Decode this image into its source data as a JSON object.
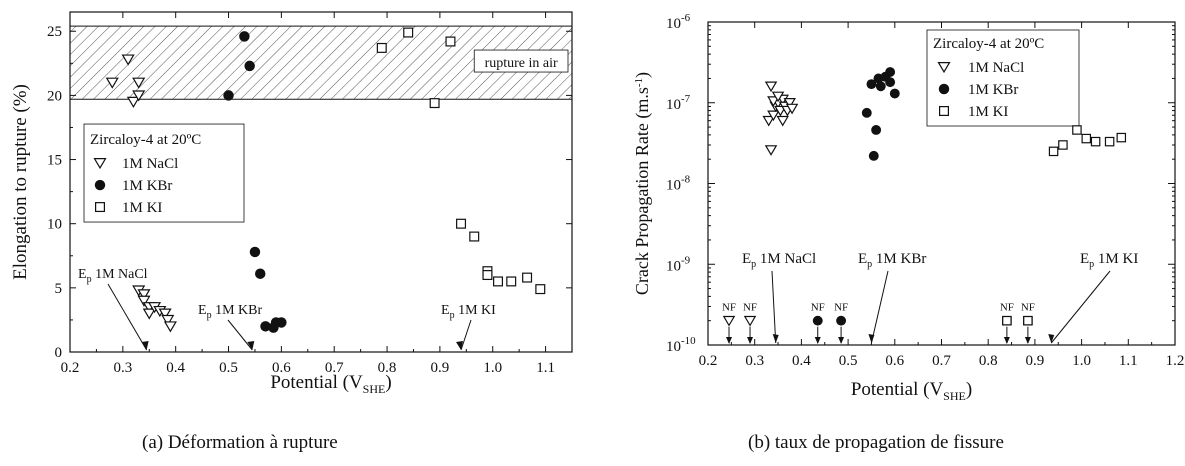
{
  "chart_data": [
    {
      "type": "scatter",
      "caption": "(a)  Déformation à rupture",
      "xlabel": "Potential (V",
      "xlabel_sub": "SHE",
      "xlabel_close": ")",
      "ylabel": "Elongation to rupture (%)",
      "xlim": [
        0.2,
        1.15
      ],
      "ylim": [
        0,
        26.5
      ],
      "xticks": [
        "0.2",
        "0.3",
        "0.4",
        "0.5",
        "0.6",
        "0.7",
        "0.8",
        "0.9",
        "1.0",
        "1.1"
      ],
      "yticks": [
        "0",
        "5",
        "10",
        "15",
        "20",
        "25"
      ],
      "legend": {
        "title": "Zircaloy-4 at 20ºC",
        "position": "center-left"
      },
      "band": {
        "y_from": 19.7,
        "y_to": 25.4,
        "label": "rupture in air"
      },
      "series": [
        {
          "name": "1M NaCl",
          "marker": "triangle-down-open",
          "points": [
            [
              0.28,
              21
            ],
            [
              0.31,
              22.8
            ],
            [
              0.32,
              19.5
            ],
            [
              0.33,
              20
            ],
            [
              0.33,
              21
            ],
            [
              0.33,
              4.8
            ],
            [
              0.34,
              4.5
            ],
            [
              0.34,
              4
            ],
            [
              0.35,
              3.5
            ],
            [
              0.35,
              3
            ],
            [
              0.36,
              3.5
            ],
            [
              0.37,
              3.2
            ],
            [
              0.38,
              3
            ],
            [
              0.385,
              2.5
            ],
            [
              0.39,
              2
            ]
          ]
        },
        {
          "name": "1M KBr",
          "marker": "circle-filled",
          "points": [
            [
              0.5,
              20
            ],
            [
              0.53,
              24.6
            ],
            [
              0.54,
              22.3
            ],
            [
              0.55,
              7.8
            ],
            [
              0.56,
              6.1
            ],
            [
              0.57,
              2
            ],
            [
              0.585,
              1.9
            ],
            [
              0.59,
              2.3
            ],
            [
              0.6,
              2.3
            ]
          ]
        },
        {
          "name": "1M KI",
          "marker": "square-open",
          "points": [
            [
              0.79,
              23.7
            ],
            [
              0.84,
              24.9
            ],
            [
              0.89,
              19.4
            ],
            [
              0.92,
              24.2
            ],
            [
              0.94,
              10
            ],
            [
              0.965,
              9
            ],
            [
              0.99,
              6.3
            ],
            [
              0.99,
              6
            ],
            [
              1.01,
              5.5
            ],
            [
              1.035,
              5.5
            ],
            [
              1.065,
              5.8
            ],
            [
              1.09,
              4.9
            ]
          ]
        }
      ],
      "annotations": [
        {
          "base": "E",
          "sub": "p",
          "text": " 1M NaCl",
          "x": 0.345
        },
        {
          "base": "E",
          "sub": "p",
          "text": " 1M KBr",
          "x": 0.545
        },
        {
          "base": "E",
          "sub": "p",
          "text": " 1M KI",
          "x": 0.94
        }
      ]
    },
    {
      "type": "scatter",
      "caption": "(b)  taux de propagation de fissure",
      "xlabel": "Potential  (V",
      "xlabel_sub": "SHE",
      "xlabel_close": ")",
      "ylabel": "Crack Propagation Rate (m.s",
      "ylabel_sup": "-1",
      "ylabel_close": ")",
      "yscale": "log",
      "xlim": [
        0.2,
        1.2
      ],
      "ylim_exp": [
        -10,
        -6
      ],
      "xticks": [
        "0.2",
        "0.3",
        "0.4",
        "0.5",
        "0.6",
        "0.7",
        "0.8",
        "0.9",
        "1.0",
        "1.1",
        "1.2"
      ],
      "yticks": [
        {
          "base": "10",
          "exp": "-10",
          "e": -10
        },
        {
          "base": "10",
          "exp": "-9",
          "e": -9
        },
        {
          "base": "10",
          "exp": "-8",
          "e": -8
        },
        {
          "base": "10",
          "exp": "-7",
          "e": -7
        },
        {
          "base": "10",
          "exp": "-6",
          "e": -6
        }
      ],
      "legend": {
        "title": "Zircaloy-4 at 20ºC",
        "position": "top-center"
      },
      "series": [
        {
          "name": "1M NaCl",
          "marker": "triangle-down-open",
          "points": [
            [
              0.335,
              1.6e-07
            ],
            [
              0.335,
              2.6e-08
            ],
            [
              0.33,
              6e-08
            ],
            [
              0.34,
              7e-08
            ],
            [
              0.345,
              9e-08
            ],
            [
              0.35,
              1e-07
            ],
            [
              0.355,
              8e-08
            ],
            [
              0.36,
              1.1e-07
            ],
            [
              0.365,
              9e-08
            ],
            [
              0.37,
              8e-08
            ],
            [
              0.375,
              1e-07
            ],
            [
              0.38,
              8.5e-08
            ],
            [
              0.34,
              1.05e-07
            ],
            [
              0.36,
              6e-08
            ],
            [
              0.35,
              1.2e-07
            ]
          ]
        },
        {
          "name": "1M KBr",
          "marker": "circle-filled",
          "points": [
            [
              0.54,
              7.5e-08
            ],
            [
              0.55,
              1.7e-07
            ],
            [
              0.555,
              2.2e-08
            ],
            [
              0.56,
              4.6e-08
            ],
            [
              0.565,
              2e-07
            ],
            [
              0.57,
              1.6e-07
            ],
            [
              0.58,
              2.1e-07
            ],
            [
              0.59,
              1.8e-07
            ],
            [
              0.59,
              2.4e-07
            ],
            [
              0.6,
              1.3e-07
            ],
            [
              0.435,
              2e-10
            ],
            [
              0.485,
              2e-10
            ]
          ]
        },
        {
          "name": "1M KI",
          "marker": "square-open",
          "points": [
            [
              0.94,
              2.5e-08
            ],
            [
              0.96,
              3e-08
            ],
            [
              0.99,
              4.6e-08
            ],
            [
              1.01,
              3.6e-08
            ],
            [
              1.03,
              3.3e-08
            ],
            [
              1.06,
              3.3e-08
            ],
            [
              1.085,
              3.7e-08
            ],
            [
              0.84,
              2e-10
            ],
            [
              0.885,
              2e-10
            ]
          ]
        }
      ],
      "nf_markers": [
        {
          "label": "NF",
          "x": 0.245,
          "marker": "triangle-down-open"
        },
        {
          "label": "NF",
          "x": 0.29,
          "marker": "triangle-down-open"
        },
        {
          "label": "NF",
          "x": 0.84,
          "marker": "square-open"
        },
        {
          "label": "NF",
          "x": 0.885,
          "marker": "square-open"
        }
      ],
      "annotations": [
        {
          "base": "E",
          "sub": "p",
          "text": " 1M NaCl",
          "x": 0.345
        },
        {
          "base": "E",
          "sub": "p",
          "text": " 1M KBr",
          "x": 0.55
        },
        {
          "base": "E",
          "sub": "p",
          "text": " 1M KI",
          "x": 0.935
        }
      ]
    }
  ]
}
